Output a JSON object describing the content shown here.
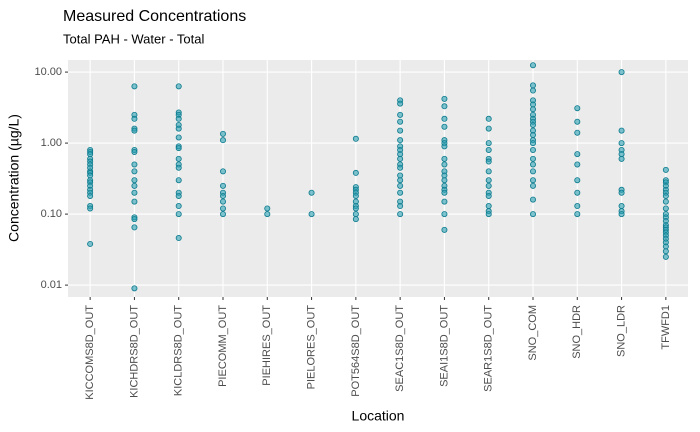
{
  "chart_data": {
    "type": "strip",
    "title": "Measured Concentrations",
    "subtitle": "Total PAH - Water - Total",
    "x_label": "Location",
    "y_label": "Concentration (µg/L)",
    "log_y": true,
    "grid": true,
    "color": "#2a9fb3",
    "categories": [
      "KICCOMS8D_OUT",
      "KICHDRS8D_OUT",
      "KICLDRS8D_OUT",
      "PIECOMM_OUT",
      "PIEHIRES_OUT",
      "PIELORES_OUT",
      "POT564S8D_OUT",
      "SEAC1S8D_OUT",
      "SEAI1S8D_OUT",
      "SEAR1S8D_OUT",
      "SNO_COM",
      "SNO_HDR",
      "SNO_LDR",
      "TFWFD1"
    ],
    "values": [
      [
        0.8,
        0.75,
        0.7,
        0.6,
        0.55,
        0.5,
        0.45,
        0.4,
        0.38,
        0.35,
        0.3,
        0.28,
        0.25,
        0.22,
        0.2,
        0.18,
        0.13,
        0.12,
        0.038
      ],
      [
        6.3,
        2.5,
        2.2,
        1.6,
        1.5,
        0.8,
        0.75,
        0.5,
        0.4,
        0.3,
        0.25,
        0.2,
        0.15,
        0.09,
        0.085,
        0.065,
        0.009
      ],
      [
        6.3,
        2.7,
        2.5,
        2.2,
        1.8,
        1.6,
        1.2,
        0.9,
        0.85,
        0.6,
        0.5,
        0.45,
        0.3,
        0.2,
        0.18,
        0.13,
        0.1,
        0.046
      ],
      [
        1.35,
        1.1,
        0.4,
        0.25,
        0.2,
        0.18,
        0.15,
        0.12,
        0.1
      ],
      [
        0.12,
        0.1
      ],
      [
        0.2,
        0.1
      ],
      [
        1.15,
        0.38,
        0.24,
        0.22,
        0.2,
        0.18,
        0.15,
        0.13,
        0.12,
        0.1,
        0.085
      ],
      [
        4,
        3.6,
        2.5,
        2,
        1.5,
        1.1,
        0.9,
        0.8,
        0.7,
        0.6,
        0.5,
        0.45,
        0.35,
        0.3,
        0.25,
        0.2,
        0.15,
        0.13,
        0.1
      ],
      [
        4.2,
        3.3,
        2.2,
        1.7,
        1.1,
        1,
        0.9,
        0.6,
        0.5,
        0.4,
        0.35,
        0.3,
        0.25,
        0.22,
        0.2,
        0.15,
        0.1,
        0.06
      ],
      [
        2.2,
        1.6,
        1,
        0.8,
        0.6,
        0.55,
        0.4,
        0.3,
        0.25,
        0.2,
        0.18,
        0.13,
        0.11,
        0.1
      ],
      [
        12.5,
        6.5,
        5.5,
        4,
        3.5,
        3,
        2.5,
        2.2,
        2,
        1.8,
        1.5,
        1.3,
        1.1,
        1,
        0.8,
        0.6,
        0.5,
        0.4,
        0.3,
        0.25,
        0.16,
        0.1
      ],
      [
        3.1,
        2,
        1.4,
        0.7,
        0.5,
        0.3,
        0.2,
        0.13,
        0.1
      ],
      [
        10,
        1.5,
        1,
        0.8,
        0.7,
        0.6,
        0.22,
        0.2,
        0.13,
        0.11,
        0.1
      ],
      [
        0.42,
        0.3,
        0.28,
        0.25,
        0.22,
        0.2,
        0.18,
        0.15,
        0.12,
        0.1,
        0.09,
        0.08,
        0.07,
        0.065,
        0.06,
        0.055,
        0.05,
        0.045,
        0.04,
        0.035,
        0.03,
        0.025
      ]
    ],
    "ylim": [
      0.0068,
      14.8
    ],
    "yticks": [
      0.01,
      {
        "value": 0.1,
        "label": "0.10"
      },
      {
        "value": 1,
        "label": "1.00"
      },
      {
        "value": 10,
        "label": "10.00"
      }
    ]
  }
}
